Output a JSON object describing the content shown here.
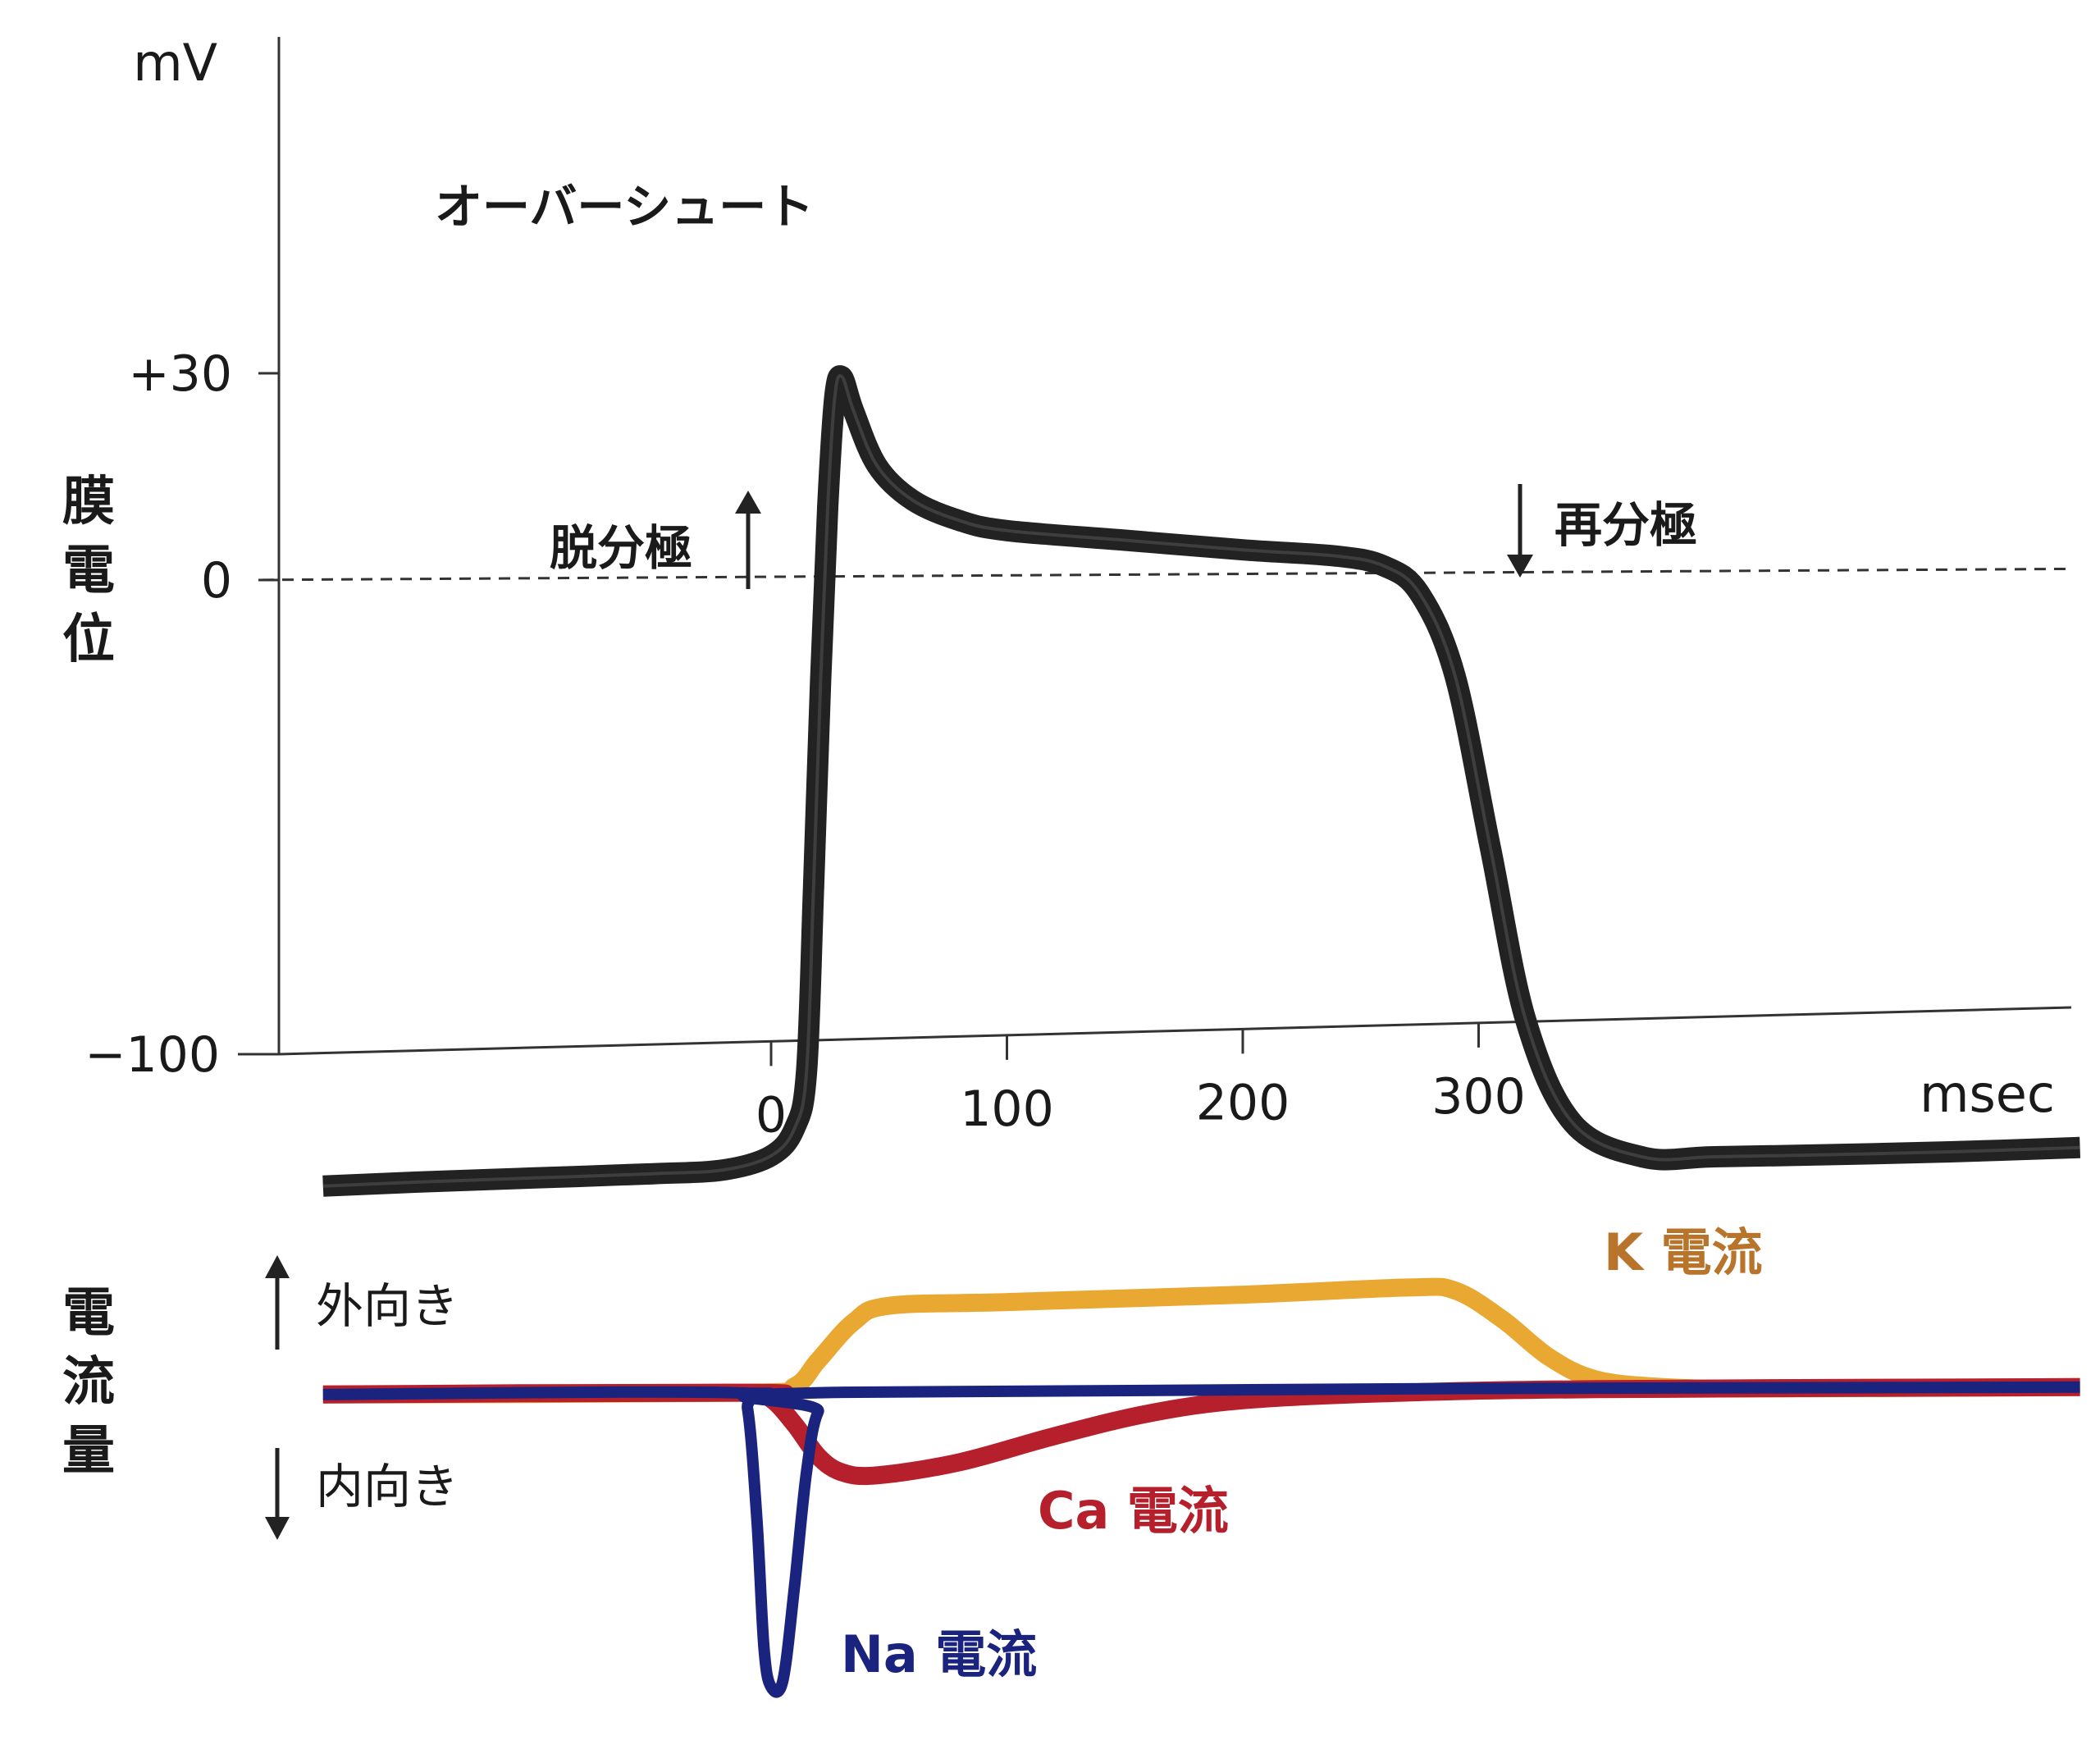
{
  "chart_data": [
    {
      "type": "line",
      "y_unit": "mV",
      "x_unit": "msec",
      "ylabel_chars": [
        "膜",
        "電",
        "位"
      ],
      "y_ticks": [
        "+30",
        "0",
        "−100"
      ],
      "y_tick_values": [
        30,
        0,
        -100
      ],
      "x_ticks": [
        "0",
        "100",
        "200",
        "300"
      ],
      "x_tick_values": [
        0,
        100,
        200,
        300
      ],
      "xlim": [
        -210,
        555
      ],
      "ylim": [
        -100,
        35
      ],
      "baseline_value": 0,
      "series": [
        {
          "color": "#222222",
          "points": [
            [
              -190,
              -88
            ],
            [
              -150,
              -87.5
            ],
            [
              -100,
              -87
            ],
            [
              -50,
              -86.5
            ],
            [
              -20,
              -86
            ],
            [
              0,
              -84
            ],
            [
              10,
              -80
            ],
            [
              15,
              -72
            ],
            [
              18,
              -45
            ],
            [
              21,
              -15
            ],
            [
              24,
              10
            ],
            [
              27,
              26
            ],
            [
              30,
              29
            ],
            [
              35,
              24
            ],
            [
              45,
              16
            ],
            [
              60,
              11
            ],
            [
              80,
              8
            ],
            [
              100,
              6.5
            ],
            [
              150,
              5
            ],
            [
              200,
              3.5
            ],
            [
              240,
              2.5
            ],
            [
              260,
              1
            ],
            [
              275,
              -3
            ],
            [
              290,
              -15
            ],
            [
              305,
              -40
            ],
            [
              320,
              -65
            ],
            [
              340,
              -80
            ],
            [
              370,
              -85
            ],
            [
              400,
              -85
            ],
            [
              450,
              -84.8
            ],
            [
              500,
              -84.5
            ],
            [
              555,
              -84
            ]
          ]
        }
      ],
      "annotations": [
        {
          "text": "オーバーシュート"
        },
        {
          "text": "脱分極",
          "arrow": "up"
        },
        {
          "text": "再分極",
          "arrow": "down"
        }
      ]
    },
    {
      "type": "line",
      "ylabel_chars": [
        "電",
        "流",
        "量"
      ],
      "direction_labels": {
        "up": "外向き",
        "down": "内向き"
      },
      "xlim": [
        -210,
        555
      ],
      "ylim": [
        -1,
        0.4
      ],
      "series": [
        {
          "name": "K 電流",
          "color": "#e8a832",
          "label_color": "#b8742a",
          "points": [
            [
              -190,
              0
            ],
            [
              -10,
              0
            ],
            [
              10,
              0.02
            ],
            [
              20,
              0.1
            ],
            [
              35,
              0.22
            ],
            [
              50,
              0.27
            ],
            [
              100,
              0.28
            ],
            [
              200,
              0.3
            ],
            [
              270,
              0.32
            ],
            [
              290,
              0.31
            ],
            [
              310,
              0.22
            ],
            [
              330,
              0.1
            ],
            [
              350,
              0.03
            ],
            [
              380,
              0.005
            ],
            [
              420,
              0
            ],
            [
              555,
              0
            ]
          ]
        },
        {
          "name": "Ca 電流",
          "color": "#b5202c",
          "label_color": "#b5202c",
          "points": [
            [
              -190,
              0
            ],
            [
              -10,
              0
            ],
            [
              0,
              -0.02
            ],
            [
              10,
              -0.1
            ],
            [
              20,
              -0.2
            ],
            [
              30,
              -0.25
            ],
            [
              45,
              -0.26
            ],
            [
              80,
              -0.22
            ],
            [
              120,
              -0.14
            ],
            [
              160,
              -0.07
            ],
            [
              200,
              -0.03
            ],
            [
              260,
              -0.01
            ],
            [
              350,
              0
            ],
            [
              555,
              0
            ]
          ]
        },
        {
          "name": "Na 電流",
          "color": "#1a237e",
          "label_color": "#1a237e",
          "points": [
            [
              -190,
              0
            ],
            [
              -15,
              0
            ],
            [
              -10,
              -0.05
            ],
            [
              -6,
              -0.4
            ],
            [
              -3,
              -0.8
            ],
            [
              0,
              -0.92
            ],
            [
              5,
              -0.9
            ],
            [
              10,
              -0.6
            ],
            [
              15,
              -0.25
            ],
            [
              20,
              -0.06
            ],
            [
              30,
              0
            ],
            [
              555,
              0
            ]
          ]
        }
      ]
    }
  ]
}
